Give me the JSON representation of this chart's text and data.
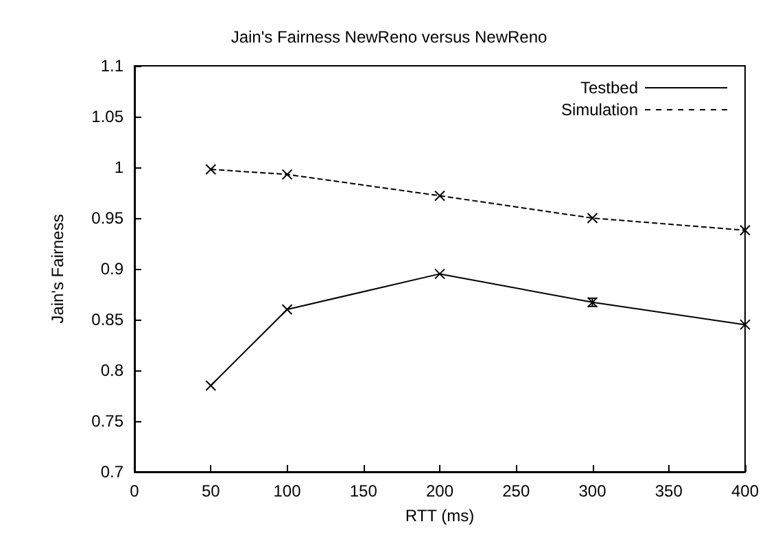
{
  "chart_data": {
    "type": "line",
    "title": "Jain's Fairness NewReno versus NewReno",
    "xlabel": "RTT (ms)",
    "ylabel": "Jain's Fairness",
    "xlim": [
      0,
      400
    ],
    "xticks": [
      0,
      50,
      100,
      150,
      200,
      250,
      300,
      350,
      400
    ],
    "ylim": [
      0.7,
      1.1
    ],
    "yticks": [
      0.7,
      0.75,
      0.8,
      0.85,
      0.9,
      0.95,
      1,
      1.05,
      1.1
    ],
    "grid": false,
    "legend": "top right",
    "marker": "cross",
    "series": [
      {
        "name": "Testbed",
        "color": "#000000",
        "line_style": "solid",
        "x": [
          50,
          100,
          200,
          300,
          400
        ],
        "values": [
          0.785,
          0.86,
          0.895,
          0.867,
          0.845
        ],
        "errors": [
          null,
          null,
          null,
          0.004,
          null
        ]
      },
      {
        "name": "Simulation",
        "color": "#000000",
        "line_style": "dashed",
        "x": [
          50,
          100,
          200,
          300,
          400
        ],
        "values": [
          0.998,
          0.993,
          0.972,
          0.95,
          0.938
        ]
      }
    ]
  }
}
